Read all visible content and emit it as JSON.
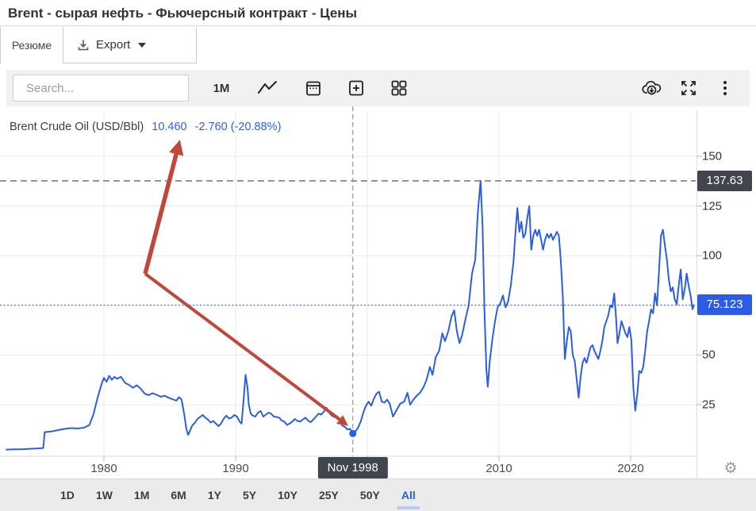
{
  "page_title": "Brent - сырая нефть - Фьючерсный контракт - Цены",
  "tabs": {
    "summary": "Резюме",
    "export": "Export"
  },
  "toolbar": {
    "search_placeholder": "Search...",
    "interval_label": "1M",
    "icons": [
      "search-icon",
      "download-icon",
      "caret-down-icon",
      "line-chart-icon",
      "calendar-icon",
      "add-panel-icon",
      "layout-grid-icon",
      "cloud-download-icon",
      "fullscreen-icon",
      "more-options-icon",
      "gear-icon"
    ]
  },
  "chart_header": {
    "series_name": "Brent Crude Oil (USD/Bbl)",
    "last": "10.460",
    "change": "-2.760",
    "change_pct": "(-20.88%)"
  },
  "colors": {
    "line_blue": "#2b5fe3",
    "accent_blue": "#2a5ce8",
    "badge_dark": "#40454e",
    "arrow_red": "#c1473b",
    "grid": "#e8e8e8"
  },
  "chart_data": {
    "type": "line",
    "title": "Brent Crude Oil (USD/Bbl)",
    "unit": "USD/Bbl",
    "grid": true,
    "legend_position": "top-left",
    "ylim": [
      0,
      165
    ],
    "yticks": [
      150,
      125,
      100,
      50,
      25
    ],
    "grid_yticks": [
      150,
      125,
      100,
      75,
      50,
      25
    ],
    "xticks": [
      1980,
      1990,
      2000,
      2010,
      2020
    ],
    "xtick_labels": [
      "1980",
      "1990",
      "",
      "2010",
      "2020"
    ],
    "x_range": [
      1972.6,
      2024.8
    ],
    "high_line": {
      "value": 137.63,
      "label": "137.63"
    },
    "current_line": {
      "value": 75.123,
      "label": "75.123"
    },
    "crosshair": {
      "label": "Nov 1998",
      "year": 1998.9,
      "value": 10.46
    },
    "series": [
      {
        "name": "Brent Crude Oil (USD/Bbl)",
        "points": [
          [
            1972.6,
            2.4
          ],
          [
            1973.2,
            2.5
          ],
          [
            1973.8,
            2.6
          ],
          [
            1974.4,
            2.8
          ],
          [
            1975.0,
            3.0
          ],
          [
            1975.4,
            3.2
          ],
          [
            1975.5,
            11.2
          ],
          [
            1976.0,
            11.5
          ],
          [
            1976.5,
            12.2
          ],
          [
            1977.0,
            12.8
          ],
          [
            1977.5,
            13.2
          ],
          [
            1978.0,
            13.0
          ],
          [
            1978.5,
            13.4
          ],
          [
            1978.9,
            14.8
          ],
          [
            1979.2,
            20.0
          ],
          [
            1979.5,
            28.0
          ],
          [
            1979.8,
            35.0
          ],
          [
            1980.0,
            38.5
          ],
          [
            1980.2,
            36.5
          ],
          [
            1980.4,
            39.5
          ],
          [
            1980.6,
            37.5
          ],
          [
            1980.8,
            39.0
          ],
          [
            1981.0,
            38.0
          ],
          [
            1981.3,
            39.0
          ],
          [
            1981.6,
            36.0
          ],
          [
            1981.9,
            35.0
          ],
          [
            1982.2,
            33.5
          ],
          [
            1982.5,
            34.8
          ],
          [
            1982.8,
            33.0
          ],
          [
            1983.1,
            30.5
          ],
          [
            1983.4,
            29.8
          ],
          [
            1983.7,
            30.8
          ],
          [
            1984.0,
            30.0
          ],
          [
            1984.3,
            29.0
          ],
          [
            1984.6,
            29.5
          ],
          [
            1984.9,
            28.5
          ],
          [
            1985.2,
            27.8
          ],
          [
            1985.5,
            27.0
          ],
          [
            1985.7,
            28.8
          ],
          [
            1985.9,
            27.5
          ],
          [
            1986.1,
            20.0
          ],
          [
            1986.25,
            13.0
          ],
          [
            1986.4,
            9.8
          ],
          [
            1986.55,
            12.0
          ],
          [
            1986.7,
            14.5
          ],
          [
            1986.9,
            15.8
          ],
          [
            1987.1,
            17.8
          ],
          [
            1987.3,
            18.8
          ],
          [
            1987.5,
            19.8
          ],
          [
            1987.7,
            18.5
          ],
          [
            1987.9,
            17.5
          ],
          [
            1988.1,
            16.0
          ],
          [
            1988.3,
            16.8
          ],
          [
            1988.5,
            15.5
          ],
          [
            1988.7,
            14.2
          ],
          [
            1988.9,
            15.5
          ],
          [
            1989.1,
            18.0
          ],
          [
            1989.3,
            19.5
          ],
          [
            1989.5,
            18.0
          ],
          [
            1989.7,
            18.5
          ],
          [
            1989.9,
            19.8
          ],
          [
            1990.1,
            19.0
          ],
          [
            1990.3,
            16.5
          ],
          [
            1990.45,
            15.5
          ],
          [
            1990.6,
            27.0
          ],
          [
            1990.75,
            40.0
          ],
          [
            1990.9,
            34.0
          ],
          [
            1991.0,
            25.0
          ],
          [
            1991.15,
            20.5
          ],
          [
            1991.3,
            19.5
          ],
          [
            1991.5,
            19.0
          ],
          [
            1991.7,
            21.0
          ],
          [
            1991.9,
            21.8
          ],
          [
            1992.1,
            19.0
          ],
          [
            1992.3,
            20.0
          ],
          [
            1992.5,
            21.0
          ],
          [
            1992.7,
            20.5
          ],
          [
            1992.9,
            19.0
          ],
          [
            1993.1,
            18.8
          ],
          [
            1993.3,
            18.5
          ],
          [
            1993.5,
            17.0
          ],
          [
            1993.7,
            16.5
          ],
          [
            1993.9,
            14.8
          ],
          [
            1994.1,
            15.5
          ],
          [
            1994.3,
            16.5
          ],
          [
            1994.5,
            17.8
          ],
          [
            1994.7,
            16.8
          ],
          [
            1994.9,
            16.5
          ],
          [
            1995.1,
            17.5
          ],
          [
            1995.3,
            18.5
          ],
          [
            1995.5,
            17.0
          ],
          [
            1995.7,
            16.2
          ],
          [
            1995.9,
            17.5
          ],
          [
            1996.1,
            19.0
          ],
          [
            1996.3,
            20.5
          ],
          [
            1996.5,
            20.0
          ],
          [
            1996.7,
            21.5
          ],
          [
            1996.9,
            23.5
          ],
          [
            1997.1,
            21.0
          ],
          [
            1997.3,
            19.5
          ],
          [
            1997.5,
            18.8
          ],
          [
            1997.7,
            19.2
          ],
          [
            1997.9,
            17.5
          ],
          [
            1998.1,
            14.5
          ],
          [
            1998.3,
            13.8
          ],
          [
            1998.5,
            12.5
          ],
          [
            1998.7,
            12.8
          ],
          [
            1998.9,
            10.46
          ],
          [
            1999.1,
            11.5
          ],
          [
            1999.3,
            13.5
          ],
          [
            1999.5,
            16.5
          ],
          [
            1999.7,
            21.0
          ],
          [
            1999.9,
            24.5
          ],
          [
            2000.1,
            26.5
          ],
          [
            2000.3,
            24.5
          ],
          [
            2000.5,
            28.0
          ],
          [
            2000.7,
            30.5
          ],
          [
            2000.9,
            31.5
          ],
          [
            2001.1,
            26.5
          ],
          [
            2001.3,
            26.0
          ],
          [
            2001.5,
            27.5
          ],
          [
            2001.7,
            25.5
          ],
          [
            2001.95,
            19.0
          ],
          [
            2002.2,
            22.0
          ],
          [
            2002.5,
            25.5
          ],
          [
            2002.8,
            26.5
          ],
          [
            2003.05,
            31.0
          ],
          [
            2003.25,
            25.0
          ],
          [
            2003.5,
            27.5
          ],
          [
            2003.75,
            29.5
          ],
          [
            2004.0,
            31.0
          ],
          [
            2004.25,
            33.5
          ],
          [
            2004.5,
            37.5
          ],
          [
            2004.75,
            44.0
          ],
          [
            2004.95,
            40.0
          ],
          [
            2005.2,
            49.0
          ],
          [
            2005.45,
            52.0
          ],
          [
            2005.7,
            61.0
          ],
          [
            2005.9,
            57.0
          ],
          [
            2006.15,
            62.0
          ],
          [
            2006.4,
            69.5
          ],
          [
            2006.6,
            72.5
          ],
          [
            2006.8,
            62.0
          ],
          [
            2007.0,
            56.0
          ],
          [
            2007.2,
            60.0
          ],
          [
            2007.45,
            68.0
          ],
          [
            2007.7,
            75.0
          ],
          [
            2007.95,
            91.0
          ],
          [
            2008.2,
            98.0
          ],
          [
            2008.4,
            122.0
          ],
          [
            2008.6,
            137.63
          ],
          [
            2008.75,
            115.0
          ],
          [
            2008.9,
            72.0
          ],
          [
            2009.05,
            42.0
          ],
          [
            2009.15,
            34.0
          ],
          [
            2009.3,
            47.0
          ],
          [
            2009.5,
            58.0
          ],
          [
            2009.7,
            67.0
          ],
          [
            2009.9,
            74.0
          ],
          [
            2010.1,
            76.0
          ],
          [
            2010.3,
            80.0
          ],
          [
            2010.5,
            74.0
          ],
          [
            2010.7,
            77.0
          ],
          [
            2010.9,
            85.0
          ],
          [
            2011.1,
            97.0
          ],
          [
            2011.25,
            112.0
          ],
          [
            2011.4,
            124.0
          ],
          [
            2011.55,
            112.0
          ],
          [
            2011.7,
            117.0
          ],
          [
            2011.85,
            109.0
          ],
          [
            2012.0,
            111.0
          ],
          [
            2012.15,
            119.0
          ],
          [
            2012.3,
            125.0
          ],
          [
            2012.45,
            103.0
          ],
          [
            2012.6,
            110.0
          ],
          [
            2012.75,
            113.0
          ],
          [
            2012.9,
            110.0
          ],
          [
            2013.05,
            113.0
          ],
          [
            2013.2,
            108.0
          ],
          [
            2013.35,
            103.0
          ],
          [
            2013.5,
            108.0
          ],
          [
            2013.65,
            111.0
          ],
          [
            2013.8,
            109.0
          ],
          [
            2013.95,
            111.0
          ],
          [
            2014.1,
            108.0
          ],
          [
            2014.25,
            110.0
          ],
          [
            2014.4,
            112.0
          ],
          [
            2014.55,
            110.0
          ],
          [
            2014.7,
            97.0
          ],
          [
            2014.85,
            79.0
          ],
          [
            2015.0,
            48.0
          ],
          [
            2015.15,
            57.0
          ],
          [
            2015.3,
            64.0
          ],
          [
            2015.45,
            62.0
          ],
          [
            2015.6,
            50.0
          ],
          [
            2015.75,
            47.0
          ],
          [
            2015.9,
            38.0
          ],
          [
            2016.05,
            28.5
          ],
          [
            2016.2,
            39.0
          ],
          [
            2016.35,
            46.0
          ],
          [
            2016.5,
            48.5
          ],
          [
            2016.65,
            46.0
          ],
          [
            2016.8,
            50.0
          ],
          [
            2016.95,
            54.0
          ],
          [
            2017.1,
            55.0
          ],
          [
            2017.25,
            52.0
          ],
          [
            2017.4,
            50.0
          ],
          [
            2017.55,
            48.0
          ],
          [
            2017.7,
            52.0
          ],
          [
            2017.85,
            57.0
          ],
          [
            2018.0,
            64.0
          ],
          [
            2018.15,
            67.0
          ],
          [
            2018.3,
            70.0
          ],
          [
            2018.45,
            75.0
          ],
          [
            2018.6,
            74.0
          ],
          [
            2018.75,
            81.0
          ],
          [
            2018.9,
            68.0
          ],
          [
            2019.0,
            56.0
          ],
          [
            2019.15,
            61.0
          ],
          [
            2019.3,
            67.0
          ],
          [
            2019.45,
            64.0
          ],
          [
            2019.6,
            61.0
          ],
          [
            2019.75,
            59.0
          ],
          [
            2019.9,
            64.0
          ],
          [
            2020.05,
            58.0
          ],
          [
            2020.2,
            34.0
          ],
          [
            2020.35,
            22.0
          ],
          [
            2020.5,
            30.0
          ],
          [
            2020.65,
            42.0
          ],
          [
            2020.8,
            41.0
          ],
          [
            2020.95,
            44.0
          ],
          [
            2021.1,
            52.0
          ],
          [
            2021.25,
            62.0
          ],
          [
            2021.4,
            67.0
          ],
          [
            2021.55,
            73.0
          ],
          [
            2021.7,
            71.0
          ],
          [
            2021.85,
            81.0
          ],
          [
            2022.0,
            75.0
          ],
          [
            2022.15,
            92.0
          ],
          [
            2022.3,
            110.0
          ],
          [
            2022.45,
            113.0
          ],
          [
            2022.6,
            105.0
          ],
          [
            2022.75,
            98.0
          ],
          [
            2022.9,
            88.0
          ],
          [
            2023.05,
            82.0
          ],
          [
            2023.2,
            84.0
          ],
          [
            2023.35,
            78.0
          ],
          [
            2023.5,
            75.5
          ],
          [
            2023.65,
            85.0
          ],
          [
            2023.8,
            93.0
          ],
          [
            2023.95,
            78.0
          ],
          [
            2024.1,
            83.0
          ],
          [
            2024.25,
            91.0
          ],
          [
            2024.4,
            85.0
          ],
          [
            2024.55,
            80.0
          ],
          [
            2024.7,
            73.0
          ],
          [
            2024.8,
            75.123
          ]
        ]
      }
    ]
  },
  "annotation_arrow": {
    "color": "#c1473b",
    "from": "quote-value-label",
    "to": "nov-1998-low-point"
  },
  "range_bar": {
    "items": [
      "1D",
      "1W",
      "1M",
      "6M",
      "1Y",
      "5Y",
      "10Y",
      "25Y",
      "50Y",
      "All"
    ],
    "active": "All"
  }
}
